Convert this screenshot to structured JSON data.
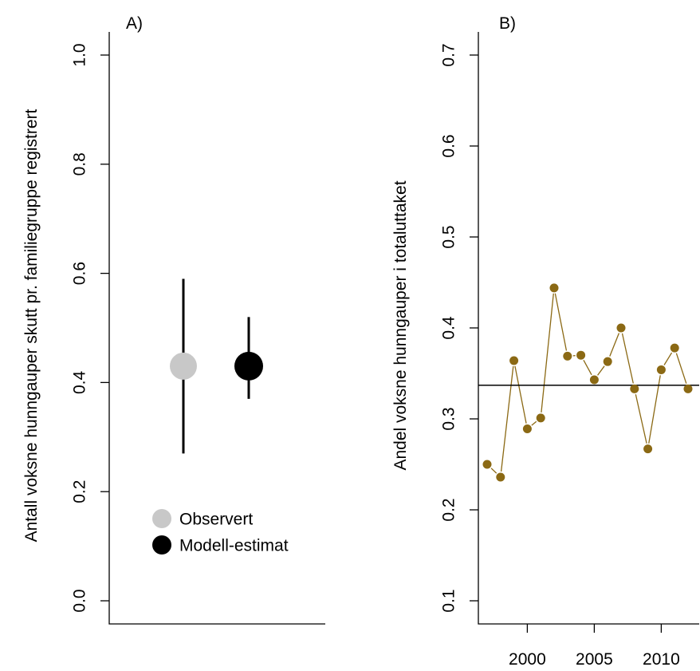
{
  "chart_data": [
    {
      "panel": "A)",
      "type": "scatter",
      "ylabel": "Antall voksne hunngauper skutt pr. familiegruppe registrert",
      "ylim": [
        0.0,
        1.0
      ],
      "yticks": [
        "0.0",
        "0.2",
        "0.4",
        "0.6",
        "0.8",
        "1.0"
      ],
      "series": [
        {
          "name": "Observert",
          "value": 0.43,
          "ci": [
            0.27,
            0.59
          ],
          "color": "#c8c8c8"
        },
        {
          "name": "Modell-estimat",
          "value": 0.43,
          "ci": [
            0.37,
            0.52
          ],
          "color": "#000000"
        }
      ],
      "legend": [
        "Observert",
        "Modell-estimat"
      ],
      "legend_position": "bottom-center"
    },
    {
      "panel": "B)",
      "type": "line",
      "ylabel": "Andel voksne hunngauper i totaluttaket",
      "ylim": [
        0.1,
        0.7
      ],
      "yticks": [
        "0.1",
        "0.2",
        "0.3",
        "0.4",
        "0.5",
        "0.6",
        "0.7"
      ],
      "xticks": [
        "2000",
        "2005",
        "2010"
      ],
      "x": [
        1997,
        1998,
        1999,
        2000,
        2001,
        2002,
        2003,
        2004,
        2005,
        2006,
        2007,
        2008,
        2009,
        2010,
        2011,
        2012
      ],
      "values": [
        0.25,
        0.236,
        0.364,
        0.289,
        0.301,
        0.444,
        0.369,
        0.37,
        0.343,
        0.363,
        0.4,
        0.333,
        0.267,
        0.354,
        0.378,
        0.333
      ],
      "hline": 0.337,
      "color": "#8b6914"
    }
  ]
}
